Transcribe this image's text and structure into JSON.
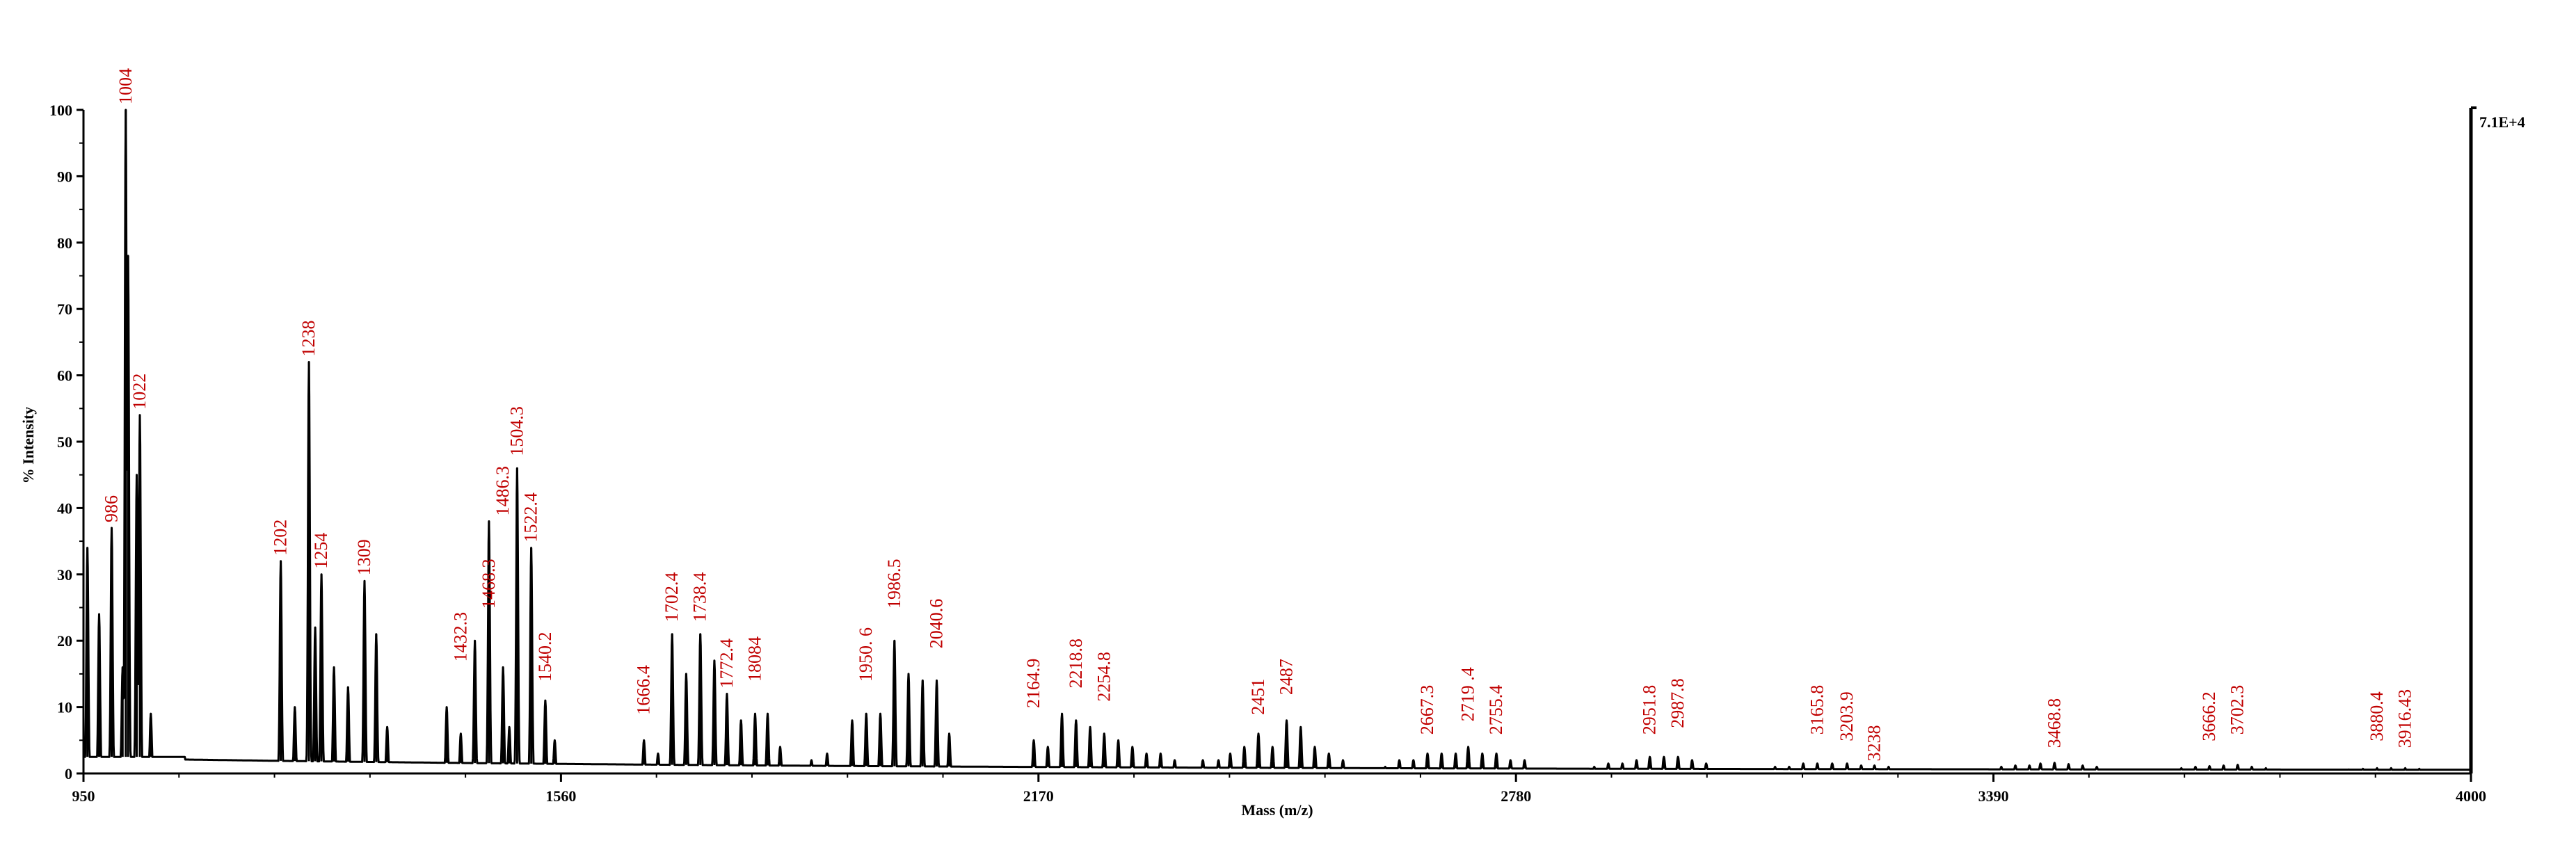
{
  "chart_data": {
    "type": "line",
    "title": "",
    "xlabel": "Mass (m/z)",
    "ylabel": "% Intensity",
    "xlim": [
      950,
      4000
    ],
    "ylim": [
      0,
      100
    ],
    "x_ticks": [
      "950",
      "1560",
      "2170",
      "2780",
      "3390",
      "4000"
    ],
    "y_ticks": [
      "0",
      "10",
      "20",
      "30",
      "40",
      "50",
      "60",
      "70",
      "80",
      "90",
      "100"
    ],
    "max_intensity_label": "7.1E+4",
    "grid": false,
    "colors": {
      "trace": "#000000",
      "labels": "#c00000"
    },
    "series": [
      {
        "name": "spectrum",
        "peaks": [
          {
            "x": 955,
            "y": 34
          },
          {
            "x": 970,
            "y": 24
          },
          {
            "x": 986,
            "y": 37
          },
          {
            "x": 1000,
            "y": 16
          },
          {
            "x": 1004,
            "y": 100
          },
          {
            "x": 1007,
            "y": 78
          },
          {
            "x": 1018,
            "y": 45
          },
          {
            "x": 1022,
            "y": 54
          },
          {
            "x": 1036,
            "y": 9
          },
          {
            "x": 1202,
            "y": 32
          },
          {
            "x": 1220,
            "y": 10
          },
          {
            "x": 1238,
            "y": 62
          },
          {
            "x": 1246,
            "y": 22
          },
          {
            "x": 1254,
            "y": 30
          },
          {
            "x": 1270,
            "y": 16
          },
          {
            "x": 1288,
            "y": 13
          },
          {
            "x": 1309,
            "y": 29
          },
          {
            "x": 1324,
            "y": 21
          },
          {
            "x": 1338,
            "y": 7
          },
          {
            "x": 1414,
            "y": 10
          },
          {
            "x": 1432,
            "y": 6
          },
          {
            "x": 1450,
            "y": 20
          },
          {
            "x": 1468,
            "y": 38
          },
          {
            "x": 1486,
            "y": 16
          },
          {
            "x": 1494,
            "y": 7
          },
          {
            "x": 1504,
            "y": 46
          },
          {
            "x": 1522,
            "y": 34
          },
          {
            "x": 1540,
            "y": 11
          },
          {
            "x": 1552,
            "y": 5
          },
          {
            "x": 1666,
            "y": 5
          },
          {
            "x": 1684,
            "y": 3
          },
          {
            "x": 1702,
            "y": 21
          },
          {
            "x": 1720,
            "y": 15
          },
          {
            "x": 1738,
            "y": 21
          },
          {
            "x": 1756,
            "y": 17
          },
          {
            "x": 1772,
            "y": 12
          },
          {
            "x": 1790,
            "y": 8
          },
          {
            "x": 1808,
            "y": 9
          },
          {
            "x": 1824,
            "y": 9
          },
          {
            "x": 1840,
            "y": 4
          },
          {
            "x": 1880,
            "y": 2
          },
          {
            "x": 1900,
            "y": 3
          },
          {
            "x": 1932,
            "y": 8
          },
          {
            "x": 1950,
            "y": 9
          },
          {
            "x": 1968,
            "y": 9
          },
          {
            "x": 1986,
            "y": 20
          },
          {
            "x": 2004,
            "y": 15
          },
          {
            "x": 2022,
            "y": 14
          },
          {
            "x": 2040,
            "y": 14
          },
          {
            "x": 2056,
            "y": 6
          },
          {
            "x": 2164,
            "y": 5
          },
          {
            "x": 2182,
            "y": 4
          },
          {
            "x": 2200,
            "y": 9
          },
          {
            "x": 2218,
            "y": 8
          },
          {
            "x": 2236,
            "y": 7
          },
          {
            "x": 2254,
            "y": 6
          },
          {
            "x": 2272,
            "y": 5
          },
          {
            "x": 2290,
            "y": 4
          },
          {
            "x": 2308,
            "y": 3
          },
          {
            "x": 2326,
            "y": 3
          },
          {
            "x": 2344,
            "y": 2
          },
          {
            "x": 2380,
            "y": 2
          },
          {
            "x": 2400,
            "y": 2
          },
          {
            "x": 2415,
            "y": 3
          },
          {
            "x": 2433,
            "y": 4
          },
          {
            "x": 2451,
            "y": 6
          },
          {
            "x": 2469,
            "y": 4
          },
          {
            "x": 2487,
            "y": 8
          },
          {
            "x": 2505,
            "y": 7
          },
          {
            "x": 2523,
            "y": 4
          },
          {
            "x": 2541,
            "y": 3
          },
          {
            "x": 2559,
            "y": 2
          },
          {
            "x": 2613,
            "y": 1
          },
          {
            "x": 2631,
            "y": 2
          },
          {
            "x": 2649,
            "y": 2
          },
          {
            "x": 2667,
            "y": 3
          },
          {
            "x": 2685,
            "y": 3
          },
          {
            "x": 2703,
            "y": 3
          },
          {
            "x": 2719,
            "y": 4
          },
          {
            "x": 2737,
            "y": 3
          },
          {
            "x": 2755,
            "y": 3
          },
          {
            "x": 2773,
            "y": 2
          },
          {
            "x": 2791,
            "y": 2
          },
          {
            "x": 2880,
            "y": 1
          },
          {
            "x": 2898,
            "y": 1.5
          },
          {
            "x": 2916,
            "y": 1.5
          },
          {
            "x": 2934,
            "y": 2
          },
          {
            "x": 2951,
            "y": 2.5
          },
          {
            "x": 2969,
            "y": 2.5
          },
          {
            "x": 2987,
            "y": 2.5
          },
          {
            "x": 3005,
            "y": 2
          },
          {
            "x": 3023,
            "y": 1.5
          },
          {
            "x": 3111,
            "y": 1
          },
          {
            "x": 3129,
            "y": 1
          },
          {
            "x": 3147,
            "y": 1.5
          },
          {
            "x": 3165,
            "y": 1.5
          },
          {
            "x": 3184,
            "y": 1.5
          },
          {
            "x": 3203,
            "y": 1.5
          },
          {
            "x": 3221,
            "y": 1.2
          },
          {
            "x": 3238,
            "y": 1.2
          },
          {
            "x": 3256,
            "y": 1
          },
          {
            "x": 3400,
            "y": 1
          },
          {
            "x": 3418,
            "y": 1.2
          },
          {
            "x": 3436,
            "y": 1.2
          },
          {
            "x": 3450,
            "y": 1.5
          },
          {
            "x": 3468,
            "y": 1.6
          },
          {
            "x": 3486,
            "y": 1.4
          },
          {
            "x": 3504,
            "y": 1.2
          },
          {
            "x": 3522,
            "y": 1
          },
          {
            "x": 3630,
            "y": 0.8
          },
          {
            "x": 3648,
            "y": 1
          },
          {
            "x": 3666,
            "y": 1.1
          },
          {
            "x": 3684,
            "y": 1.2
          },
          {
            "x": 3702,
            "y": 1.3
          },
          {
            "x": 3720,
            "y": 1
          },
          {
            "x": 3738,
            "y": 0.8
          },
          {
            "x": 3844,
            "y": 0.6
          },
          {
            "x": 3862,
            "y": 0.7
          },
          {
            "x": 3880,
            "y": 0.8
          },
          {
            "x": 3898,
            "y": 0.8
          },
          {
            "x": 3916,
            "y": 0.8
          },
          {
            "x": 3934,
            "y": 0.7
          }
        ]
      }
    ],
    "annotations": [
      {
        "x": 986,
        "y": 37,
        "text": "986"
      },
      {
        "x": 1004,
        "y": 100,
        "text": "1004"
      },
      {
        "x": 1022,
        "y": 54,
        "text": "1022"
      },
      {
        "x": 1202,
        "y": 32,
        "text": "1202"
      },
      {
        "x": 1238,
        "y": 62,
        "text": "1238"
      },
      {
        "x": 1254,
        "y": 30,
        "text": "1254"
      },
      {
        "x": 1309,
        "y": 29,
        "text": "1309"
      },
      {
        "x": 1432,
        "y": 16,
        "text": "1432.3"
      },
      {
        "x": 1468,
        "y": 24,
        "text": "1468.3"
      },
      {
        "x": 1486,
        "y": 38,
        "text": "1486.3"
      },
      {
        "x": 1504,
        "y": 47,
        "text": "1504.3"
      },
      {
        "x": 1522,
        "y": 34,
        "text": "1522.4"
      },
      {
        "x": 1540,
        "y": 13,
        "text": "1540.2"
      },
      {
        "x": 1666,
        "y": 8,
        "text": "1666.4"
      },
      {
        "x": 1702,
        "y": 22,
        "text": "1702.4"
      },
      {
        "x": 1738,
        "y": 22,
        "text": "1738.4"
      },
      {
        "x": 1772,
        "y": 12,
        "text": "1772.4"
      },
      {
        "x": 1808,
        "y": 13,
        "text": "18084"
      },
      {
        "x": 1950,
        "y": 13,
        "text": "1950. 6"
      },
      {
        "x": 1986,
        "y": 24,
        "text": "1986.5"
      },
      {
        "x": 2040,
        "y": 18,
        "text": "2040.6"
      },
      {
        "x": 2164,
        "y": 9,
        "text": "2164.9"
      },
      {
        "x": 2218,
        "y": 12,
        "text": "2218.8"
      },
      {
        "x": 2254,
        "y": 10,
        "text": "2254.8"
      },
      {
        "x": 2451,
        "y": 8,
        "text": "2451"
      },
      {
        "x": 2487,
        "y": 11,
        "text": "2487"
      },
      {
        "x": 2667,
        "y": 5,
        "text": "2667.3"
      },
      {
        "x": 2719,
        "y": 7,
        "text": "2719 .4"
      },
      {
        "x": 2755,
        "y": 5,
        "text": "2755.4"
      },
      {
        "x": 2951,
        "y": 5,
        "text": "2951.8"
      },
      {
        "x": 2987,
        "y": 6,
        "text": "2987.8"
      },
      {
        "x": 3165,
        "y": 5,
        "text": "3165.8"
      },
      {
        "x": 3203,
        "y": 4,
        "text": "3203.9"
      },
      {
        "x": 3238,
        "y": 1,
        "text": "3238"
      },
      {
        "x": 3468,
        "y": 3,
        "text": "3468.8"
      },
      {
        "x": 3666,
        "y": 4,
        "text": "3666.2"
      },
      {
        "x": 3702,
        "y": 5,
        "text": "3702.3"
      },
      {
        "x": 3880,
        "y": 4,
        "text": "3880.4"
      },
      {
        "x": 3916,
        "y": 3,
        "text": "3916.43"
      }
    ]
  }
}
